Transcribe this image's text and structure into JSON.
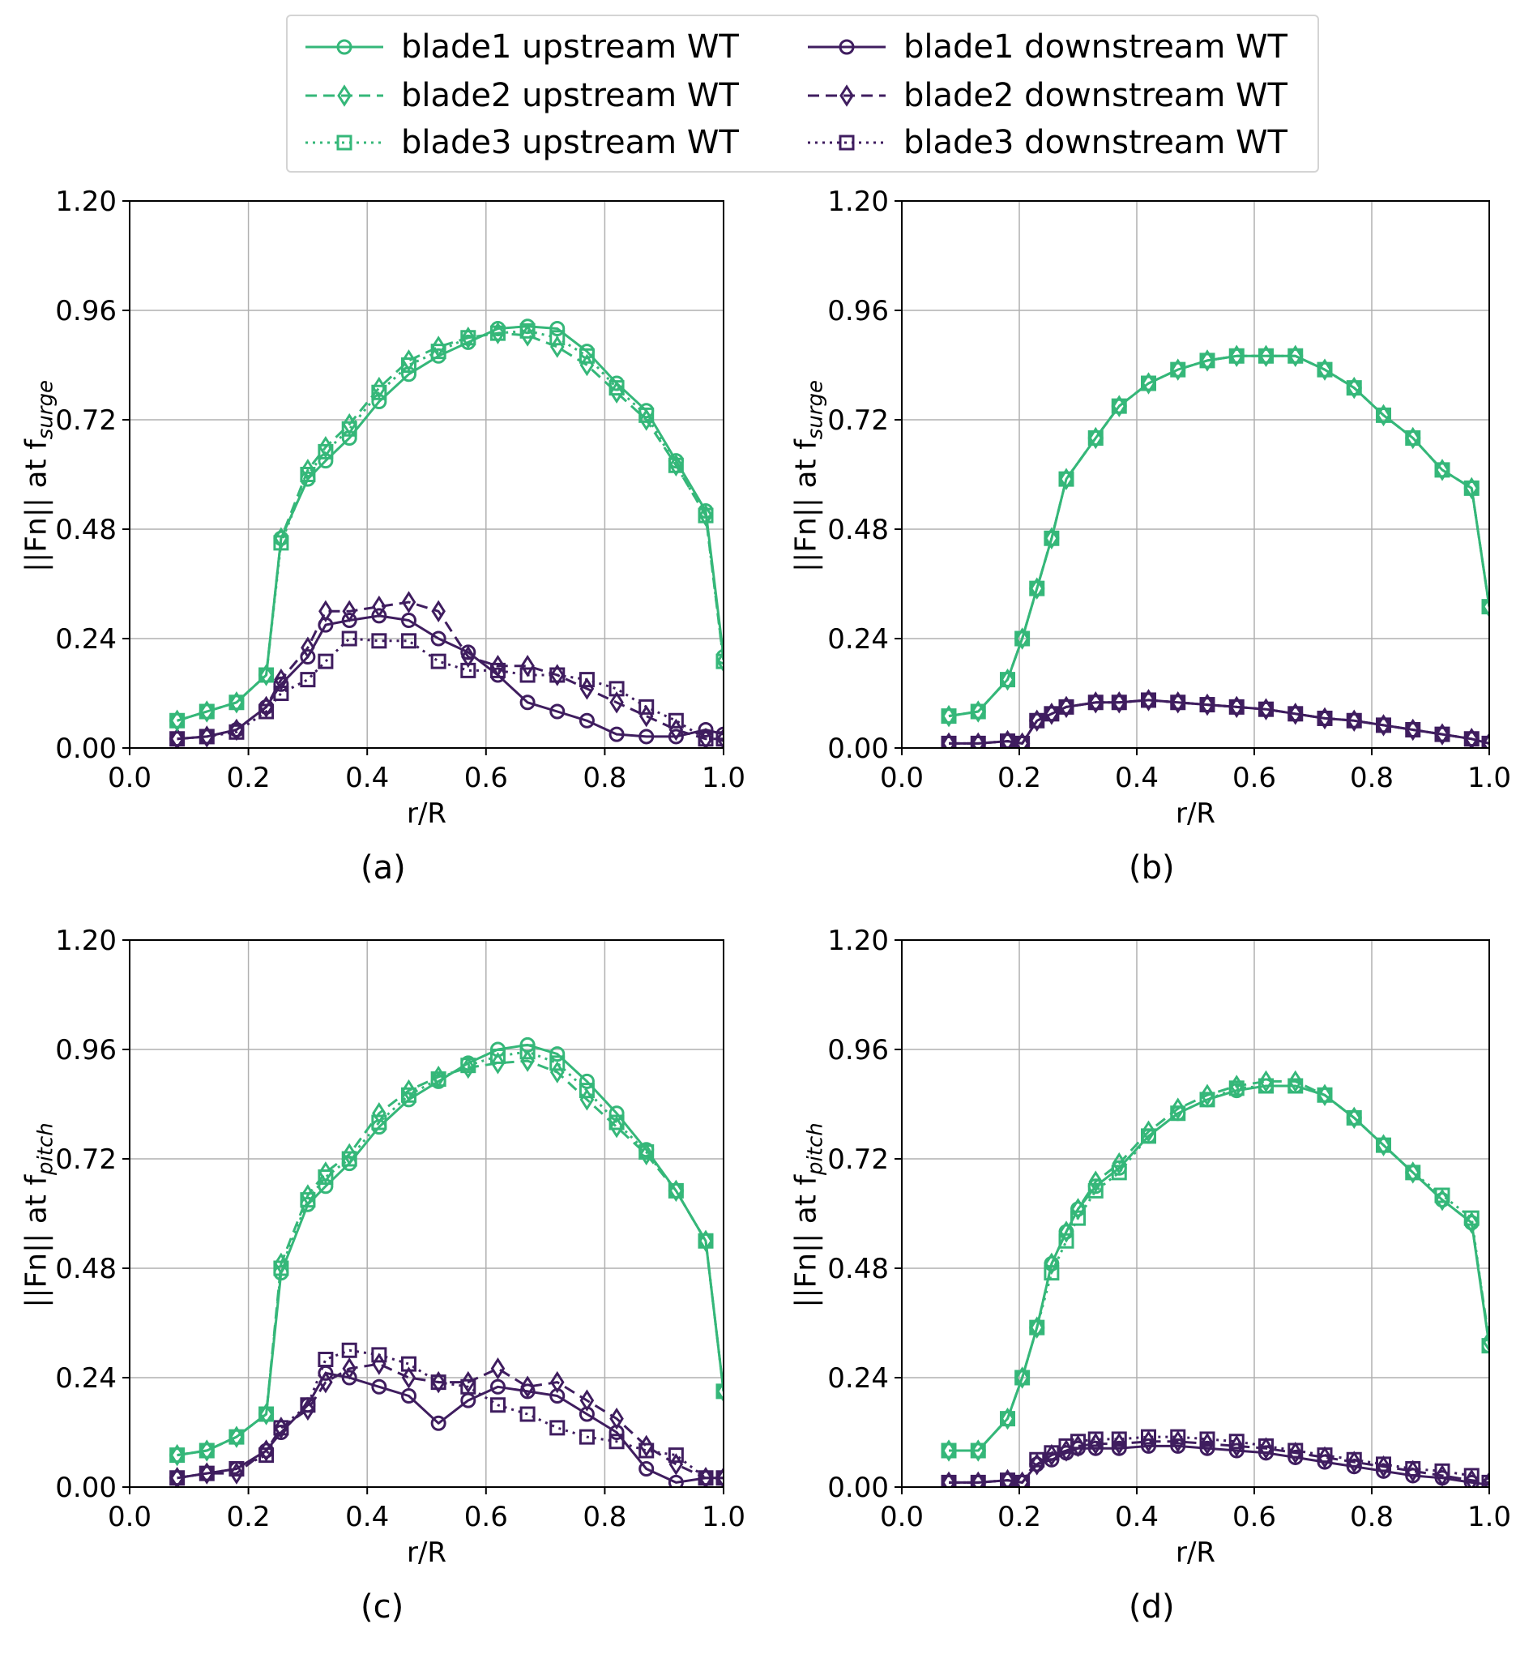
{
  "colors": {
    "upstream": "#35b779",
    "downstream": "#3f1d5f",
    "grid": "#b0b0b0"
  },
  "legend": [
    {
      "label": "blade1 upstream WT",
      "group": "upstream",
      "marker": "circle",
      "dash": "solid"
    },
    {
      "label": "blade2 upstream WT",
      "group": "upstream",
      "marker": "diamond",
      "dash": "dashed"
    },
    {
      "label": "blade3 upstream WT",
      "group": "upstream",
      "marker": "square",
      "dash": "dotted"
    },
    {
      "label": "blade1 downstream WT",
      "group": "downstream",
      "marker": "circle",
      "dash": "solid"
    },
    {
      "label": "blade2 downstream WT",
      "group": "downstream",
      "marker": "diamond",
      "dash": "dashed"
    },
    {
      "label": "blade3 downstream WT",
      "group": "downstream",
      "marker": "square",
      "dash": "dotted"
    }
  ],
  "chart_data": [
    {
      "panel": "(a)",
      "type": "line",
      "xlabel": "r/R",
      "ylabel_prefix": "||Fn|| at f",
      "ylabel_sub": "surge",
      "xlim": [
        0.0,
        1.0
      ],
      "ylim": [
        0.0,
        1.2
      ],
      "xticks": [
        "0.0",
        "0.2",
        "0.4",
        "0.6",
        "0.8",
        "1.0"
      ],
      "yticks": [
        "0.00",
        "0.24",
        "0.48",
        "0.72",
        "0.96",
        "1.20"
      ],
      "x": [
        0.08,
        0.13,
        0.18,
        0.23,
        0.255,
        0.3,
        0.33,
        0.37,
        0.42,
        0.47,
        0.52,
        0.57,
        0.62,
        0.67,
        0.72,
        0.77,
        0.82,
        0.87,
        0.92,
        0.97,
        1.0
      ],
      "series": [
        {
          "name": "blade1 upstream WT",
          "values": [
            0.06,
            0.08,
            0.1,
            0.16,
            0.46,
            0.59,
            0.63,
            0.68,
            0.76,
            0.82,
            0.86,
            0.89,
            0.92,
            0.925,
            0.92,
            0.87,
            0.8,
            0.74,
            0.63,
            0.52,
            0.2
          ]
        },
        {
          "name": "blade2 upstream WT",
          "values": [
            0.06,
            0.08,
            0.1,
            0.16,
            0.46,
            0.61,
            0.66,
            0.71,
            0.79,
            0.85,
            0.88,
            0.9,
            0.91,
            0.905,
            0.88,
            0.84,
            0.78,
            0.72,
            0.62,
            0.51,
            0.19
          ]
        },
        {
          "name": "blade3 upstream WT",
          "values": [
            0.06,
            0.08,
            0.1,
            0.16,
            0.45,
            0.6,
            0.65,
            0.7,
            0.78,
            0.84,
            0.87,
            0.9,
            0.91,
            0.915,
            0.9,
            0.86,
            0.79,
            0.73,
            0.62,
            0.51,
            0.19
          ]
        },
        {
          "name": "blade1 downstream WT",
          "values": [
            0.02,
            0.025,
            0.04,
            0.09,
            0.14,
            0.2,
            0.27,
            0.28,
            0.29,
            0.28,
            0.24,
            0.21,
            0.16,
            0.1,
            0.08,
            0.06,
            0.03,
            0.025,
            0.025,
            0.04,
            0.03
          ]
        },
        {
          "name": "blade2 downstream WT",
          "values": [
            0.02,
            0.025,
            0.04,
            0.09,
            0.15,
            0.22,
            0.3,
            0.3,
            0.31,
            0.32,
            0.3,
            0.2,
            0.18,
            0.18,
            0.16,
            0.13,
            0.1,
            0.07,
            0.04,
            0.02,
            0.02
          ]
        },
        {
          "name": "blade3 downstream WT",
          "values": [
            0.02,
            0.025,
            0.035,
            0.08,
            0.12,
            0.15,
            0.19,
            0.24,
            0.235,
            0.235,
            0.19,
            0.17,
            0.17,
            0.16,
            0.16,
            0.15,
            0.13,
            0.09,
            0.06,
            0.02,
            0.02
          ]
        }
      ]
    },
    {
      "panel": "(b)",
      "type": "line",
      "xlabel": "r/R",
      "ylabel_prefix": "||Fn|| at f",
      "ylabel_sub": "surge",
      "xlim": [
        0.0,
        1.0
      ],
      "ylim": [
        0.0,
        1.2
      ],
      "xticks": [
        "0.0",
        "0.2",
        "0.4",
        "0.6",
        "0.8",
        "1.0"
      ],
      "yticks": [
        "0.00",
        "0.24",
        "0.48",
        "0.72",
        "0.96",
        "1.20"
      ],
      "x": [
        0.08,
        0.13,
        0.18,
        0.205,
        0.23,
        0.255,
        0.28,
        0.33,
        0.37,
        0.42,
        0.47,
        0.52,
        0.57,
        0.62,
        0.67,
        0.72,
        0.77,
        0.82,
        0.87,
        0.92,
        0.97,
        1.0
      ],
      "series": [
        {
          "name": "blade1 upstream WT",
          "values": [
            0.07,
            0.08,
            0.15,
            0.24,
            0.35,
            0.46,
            0.59,
            0.68,
            0.75,
            0.8,
            0.83,
            0.85,
            0.86,
            0.86,
            0.86,
            0.83,
            0.79,
            0.73,
            0.68,
            0.61,
            0.57,
            0.31
          ]
        },
        {
          "name": "blade2 upstream WT",
          "values": [
            0.07,
            0.08,
            0.15,
            0.24,
            0.35,
            0.46,
            0.59,
            0.68,
            0.75,
            0.8,
            0.83,
            0.85,
            0.86,
            0.86,
            0.86,
            0.83,
            0.79,
            0.73,
            0.68,
            0.61,
            0.57,
            0.31
          ]
        },
        {
          "name": "blade3 upstream WT",
          "values": [
            0.07,
            0.08,
            0.15,
            0.24,
            0.35,
            0.46,
            0.59,
            0.68,
            0.75,
            0.8,
            0.83,
            0.85,
            0.86,
            0.86,
            0.86,
            0.83,
            0.79,
            0.73,
            0.68,
            0.61,
            0.57,
            0.31
          ]
        },
        {
          "name": "blade1 downstream WT",
          "values": [
            0.01,
            0.01,
            0.015,
            0.01,
            0.06,
            0.075,
            0.09,
            0.1,
            0.1,
            0.105,
            0.1,
            0.095,
            0.09,
            0.085,
            0.075,
            0.065,
            0.06,
            0.05,
            0.04,
            0.03,
            0.02,
            0.01
          ]
        },
        {
          "name": "blade2 downstream WT",
          "values": [
            0.01,
            0.01,
            0.015,
            0.01,
            0.06,
            0.075,
            0.09,
            0.1,
            0.1,
            0.105,
            0.1,
            0.095,
            0.09,
            0.085,
            0.075,
            0.065,
            0.06,
            0.05,
            0.04,
            0.03,
            0.02,
            0.01
          ]
        },
        {
          "name": "blade3 downstream WT",
          "values": [
            0.01,
            0.01,
            0.015,
            0.01,
            0.06,
            0.075,
            0.09,
            0.1,
            0.1,
            0.105,
            0.1,
            0.095,
            0.09,
            0.085,
            0.075,
            0.065,
            0.06,
            0.05,
            0.04,
            0.03,
            0.02,
            0.01
          ]
        }
      ]
    },
    {
      "panel": "(c)",
      "type": "line",
      "xlabel": "r/R",
      "ylabel_prefix": "||Fn|| at f",
      "ylabel_sub": "pitch",
      "xlim": [
        0.0,
        1.0
      ],
      "ylim": [
        0.0,
        1.2
      ],
      "xticks": [
        "0.0",
        "0.2",
        "0.4",
        "0.6",
        "0.8",
        "1.0"
      ],
      "yticks": [
        "0.00",
        "0.24",
        "0.48",
        "0.72",
        "0.96",
        "1.20"
      ],
      "x": [
        0.08,
        0.13,
        0.18,
        0.23,
        0.255,
        0.3,
        0.33,
        0.37,
        0.42,
        0.47,
        0.52,
        0.57,
        0.62,
        0.67,
        0.72,
        0.77,
        0.82,
        0.87,
        0.92,
        0.97,
        1.0
      ],
      "series": [
        {
          "name": "blade1 upstream WT",
          "values": [
            0.07,
            0.08,
            0.11,
            0.16,
            0.47,
            0.62,
            0.66,
            0.71,
            0.79,
            0.85,
            0.89,
            0.93,
            0.96,
            0.97,
            0.95,
            0.89,
            0.82,
            0.74,
            0.65,
            0.54,
            0.21
          ]
        },
        {
          "name": "blade2 upstream WT",
          "values": [
            0.07,
            0.08,
            0.11,
            0.16,
            0.49,
            0.64,
            0.69,
            0.73,
            0.82,
            0.87,
            0.9,
            0.92,
            0.93,
            0.935,
            0.91,
            0.85,
            0.79,
            0.73,
            0.65,
            0.54,
            0.21
          ]
        },
        {
          "name": "blade3 upstream WT",
          "values": [
            0.07,
            0.08,
            0.11,
            0.16,
            0.48,
            0.63,
            0.68,
            0.72,
            0.8,
            0.86,
            0.895,
            0.925,
            0.945,
            0.955,
            0.93,
            0.87,
            0.8,
            0.735,
            0.65,
            0.54,
            0.21
          ]
        },
        {
          "name": "blade1 downstream WT",
          "values": [
            0.02,
            0.03,
            0.04,
            0.08,
            0.12,
            0.18,
            0.25,
            0.24,
            0.22,
            0.2,
            0.14,
            0.19,
            0.22,
            0.21,
            0.2,
            0.16,
            0.12,
            0.04,
            0.01,
            0.02,
            0.02
          ]
        },
        {
          "name": "blade2 downstream WT",
          "values": [
            0.02,
            0.03,
            0.03,
            0.08,
            0.13,
            0.17,
            0.23,
            0.26,
            0.27,
            0.24,
            0.23,
            0.23,
            0.26,
            0.22,
            0.23,
            0.19,
            0.15,
            0.09,
            0.05,
            0.02,
            0.02
          ]
        },
        {
          "name": "blade3 downstream WT",
          "values": [
            0.02,
            0.03,
            0.04,
            0.07,
            0.13,
            0.18,
            0.28,
            0.3,
            0.29,
            0.27,
            0.23,
            0.22,
            0.18,
            0.16,
            0.13,
            0.11,
            0.1,
            0.08,
            0.07,
            0.02,
            0.02
          ]
        }
      ]
    },
    {
      "panel": "(d)",
      "type": "line",
      "xlabel": "r/R",
      "ylabel_prefix": "||Fn|| at f",
      "ylabel_sub": "pitch",
      "xlim": [
        0.0,
        1.0
      ],
      "ylim": [
        0.0,
        1.2
      ],
      "xticks": [
        "0.0",
        "0.2",
        "0.4",
        "0.6",
        "0.8",
        "1.0"
      ],
      "yticks": [
        "0.00",
        "0.24",
        "0.48",
        "0.72",
        "0.96",
        "1.20"
      ],
      "x": [
        0.08,
        0.13,
        0.18,
        0.205,
        0.23,
        0.255,
        0.28,
        0.3,
        0.33,
        0.37,
        0.42,
        0.47,
        0.52,
        0.57,
        0.62,
        0.67,
        0.72,
        0.77,
        0.82,
        0.87,
        0.92,
        0.97,
        1.0
      ],
      "series": [
        {
          "name": "blade1 upstream WT",
          "values": [
            0.08,
            0.08,
            0.15,
            0.24,
            0.35,
            0.49,
            0.56,
            0.61,
            0.66,
            0.7,
            0.77,
            0.82,
            0.85,
            0.87,
            0.88,
            0.88,
            0.86,
            0.81,
            0.75,
            0.69,
            0.63,
            0.58,
            0.31
          ]
        },
        {
          "name": "blade2 upstream WT",
          "values": [
            0.08,
            0.08,
            0.15,
            0.24,
            0.35,
            0.49,
            0.56,
            0.61,
            0.67,
            0.71,
            0.78,
            0.83,
            0.86,
            0.88,
            0.89,
            0.89,
            0.86,
            0.81,
            0.75,
            0.69,
            0.63,
            0.58,
            0.32
          ]
        },
        {
          "name": "blade3 upstream WT",
          "values": [
            0.08,
            0.08,
            0.15,
            0.24,
            0.35,
            0.47,
            0.54,
            0.59,
            0.65,
            0.69,
            0.77,
            0.82,
            0.85,
            0.875,
            0.88,
            0.88,
            0.86,
            0.81,
            0.75,
            0.69,
            0.64,
            0.59,
            0.31
          ]
        },
        {
          "name": "blade1 downstream WT",
          "values": [
            0.01,
            0.01,
            0.015,
            0.01,
            0.05,
            0.06,
            0.075,
            0.085,
            0.085,
            0.085,
            0.09,
            0.09,
            0.085,
            0.08,
            0.075,
            0.065,
            0.055,
            0.045,
            0.035,
            0.025,
            0.02,
            0.01,
            0.005
          ]
        },
        {
          "name": "blade2 downstream WT",
          "values": [
            0.01,
            0.01,
            0.015,
            0.01,
            0.05,
            0.07,
            0.08,
            0.09,
            0.095,
            0.095,
            0.1,
            0.1,
            0.095,
            0.09,
            0.085,
            0.075,
            0.065,
            0.055,
            0.045,
            0.035,
            0.025,
            0.015,
            0.01
          ]
        },
        {
          "name": "blade3 downstream WT",
          "values": [
            0.01,
            0.01,
            0.015,
            0.01,
            0.06,
            0.075,
            0.09,
            0.1,
            0.105,
            0.105,
            0.11,
            0.11,
            0.105,
            0.1,
            0.09,
            0.08,
            0.07,
            0.06,
            0.05,
            0.04,
            0.035,
            0.025,
            0.01
          ]
        }
      ]
    }
  ]
}
